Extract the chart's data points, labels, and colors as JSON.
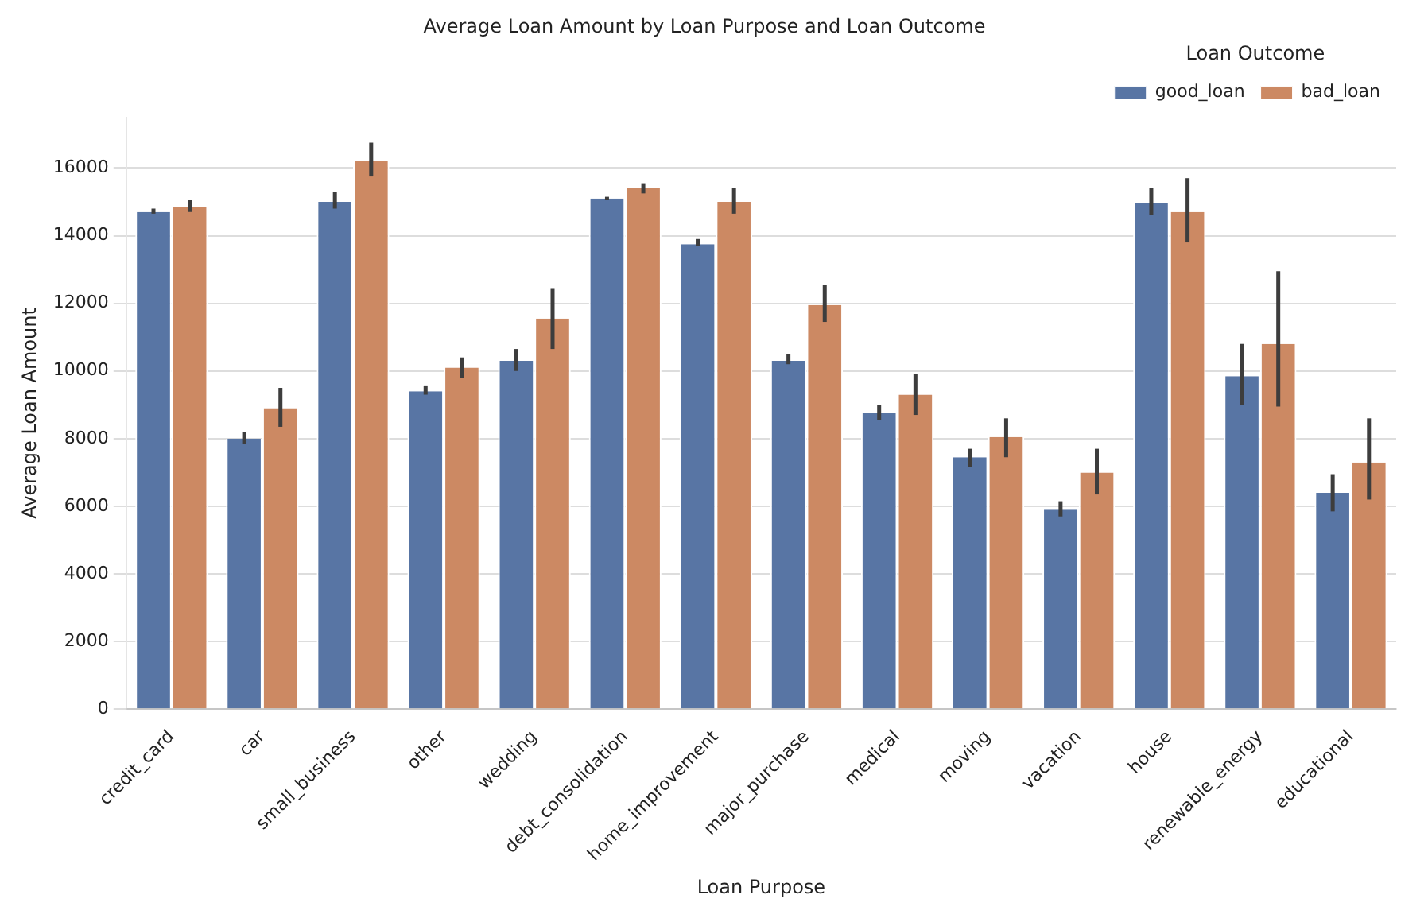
{
  "chart_data": {
    "type": "bar",
    "title": "Average Loan Amount by Loan Purpose and Loan Outcome",
    "xlabel": "Loan Purpose",
    "ylabel": "Average Loan Amount",
    "legend_title": "Loan Outcome",
    "categories": [
      "credit_card",
      "car",
      "small_business",
      "other",
      "wedding",
      "debt_consolidation",
      "home_improvement",
      "major_purchase",
      "medical",
      "moving",
      "vacation",
      "house",
      "renewable_energy",
      "educational"
    ],
    "series": [
      {
        "name": "good_loan",
        "color": "#5875a4",
        "values": [
          14700,
          8000,
          15000,
          9400,
          10300,
          15100,
          13750,
          10300,
          8750,
          7450,
          5900,
          14950,
          9850,
          6400
        ],
        "errors": [
          [
            14650,
            14800
          ],
          [
            7850,
            8200
          ],
          [
            14800,
            15300
          ],
          [
            9300,
            9550
          ],
          [
            10000,
            10650
          ],
          [
            15050,
            15150
          ],
          [
            13700,
            13900
          ],
          [
            10200,
            10500
          ],
          [
            8550,
            9000
          ],
          [
            7150,
            7700
          ],
          [
            5700,
            6150
          ],
          [
            14600,
            15400
          ],
          [
            9000,
            10800
          ],
          [
            5850,
            6950
          ]
        ]
      },
      {
        "name": "bad_loan",
        "color": "#cc8963",
        "values": [
          14850,
          8900,
          16200,
          10100,
          11550,
          15400,
          15000,
          11950,
          9300,
          8050,
          7000,
          14700,
          10800,
          7300
        ],
        "errors": [
          [
            14700,
            15050
          ],
          [
            8350,
            9500
          ],
          [
            15750,
            16750
          ],
          [
            9800,
            10400
          ],
          [
            10650,
            12450
          ],
          [
            15250,
            15550
          ],
          [
            14650,
            15400
          ],
          [
            11450,
            12550
          ],
          [
            8700,
            9900
          ],
          [
            7450,
            8600
          ],
          [
            6350,
            7700
          ],
          [
            13800,
            15700
          ],
          [
            8950,
            12950
          ],
          [
            6200,
            8600
          ]
        ]
      }
    ],
    "ylim": [
      0,
      17500
    ],
    "yticks": [
      0,
      2000,
      4000,
      6000,
      8000,
      10000,
      12000,
      14000,
      16000
    ],
    "grid": "y",
    "legend": "top right"
  }
}
